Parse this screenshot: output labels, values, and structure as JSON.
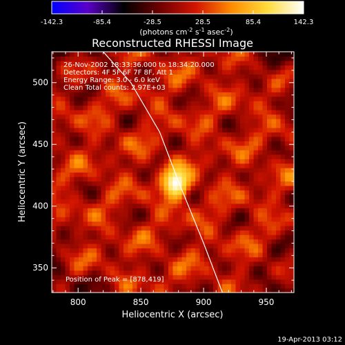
{
  "chart_data": {
    "type": "heatmap",
    "title": "Reconstructed RHESSI Image",
    "xlabel": "Heliocentric X (arcsec)",
    "ylabel": "Heliocentric Y (arcsec)",
    "xlim": [
      779,
      972
    ],
    "ylim": [
      330,
      525
    ],
    "x_ticks": [
      800,
      850,
      900,
      950
    ],
    "y_ticks": [
      350,
      400,
      450,
      500
    ],
    "colorbar": {
      "min": -142.3,
      "max": 142.3,
      "ticks": [
        "-142.3",
        "-85.4",
        "-28.5",
        "28.5",
        "85.4",
        "142.3"
      ],
      "unit_label_parts": [
        "(photons cm",
        "-2",
        " s",
        "-1",
        " asec",
        "-2",
        ")"
      ]
    },
    "annotations": [
      "26-Nov-2002 18:33:36.000 to 18:34:20.000",
      "Detectors: 4F 5F 6F 7F 8F, Att 1",
      "Energy Range: 3.0 - 6.0 keV",
      "Clean     Total counts: 2.97E+03"
    ],
    "peak": {
      "label": "Position of Peak = [878,419]",
      "x": 878,
      "y": 419,
      "value": 142.3
    },
    "limb_curve": [
      [
        820,
        525
      ],
      [
        842,
        500
      ],
      [
        865,
        460
      ],
      [
        880,
        420
      ],
      [
        890,
        395
      ],
      [
        900,
        370
      ],
      [
        915,
        330
      ]
    ],
    "colormap": [
      "#0000ff",
      "#5a00c8",
      "#000000",
      "#6e0000",
      "#d21400",
      "#ff8c00",
      "#ffdc3c",
      "#ffffff"
    ]
  },
  "footer": {
    "timestamp": "19-Apr-2013 03:12"
  }
}
